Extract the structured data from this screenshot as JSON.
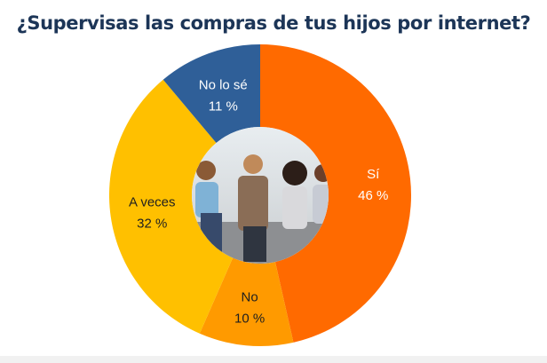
{
  "chart_data": {
    "type": "pie",
    "style": "donut",
    "title": "¿Supervisas las compras de tus hijos por internet?",
    "categories": [
      "Sí",
      "No",
      "A veces",
      "No lo sé"
    ],
    "values": [
      46,
      10,
      32,
      11
    ],
    "value_suffix": " %",
    "colors": [
      "#FF6A00",
      "#FF9A00",
      "#FFC000",
      "#2F5F98"
    ],
    "label_colors": [
      "#ffffff",
      "#1f1f1f",
      "#1f1f1f",
      "#ffffff"
    ],
    "start": "top, clockwise",
    "center_image": "children using smartphones"
  }
}
